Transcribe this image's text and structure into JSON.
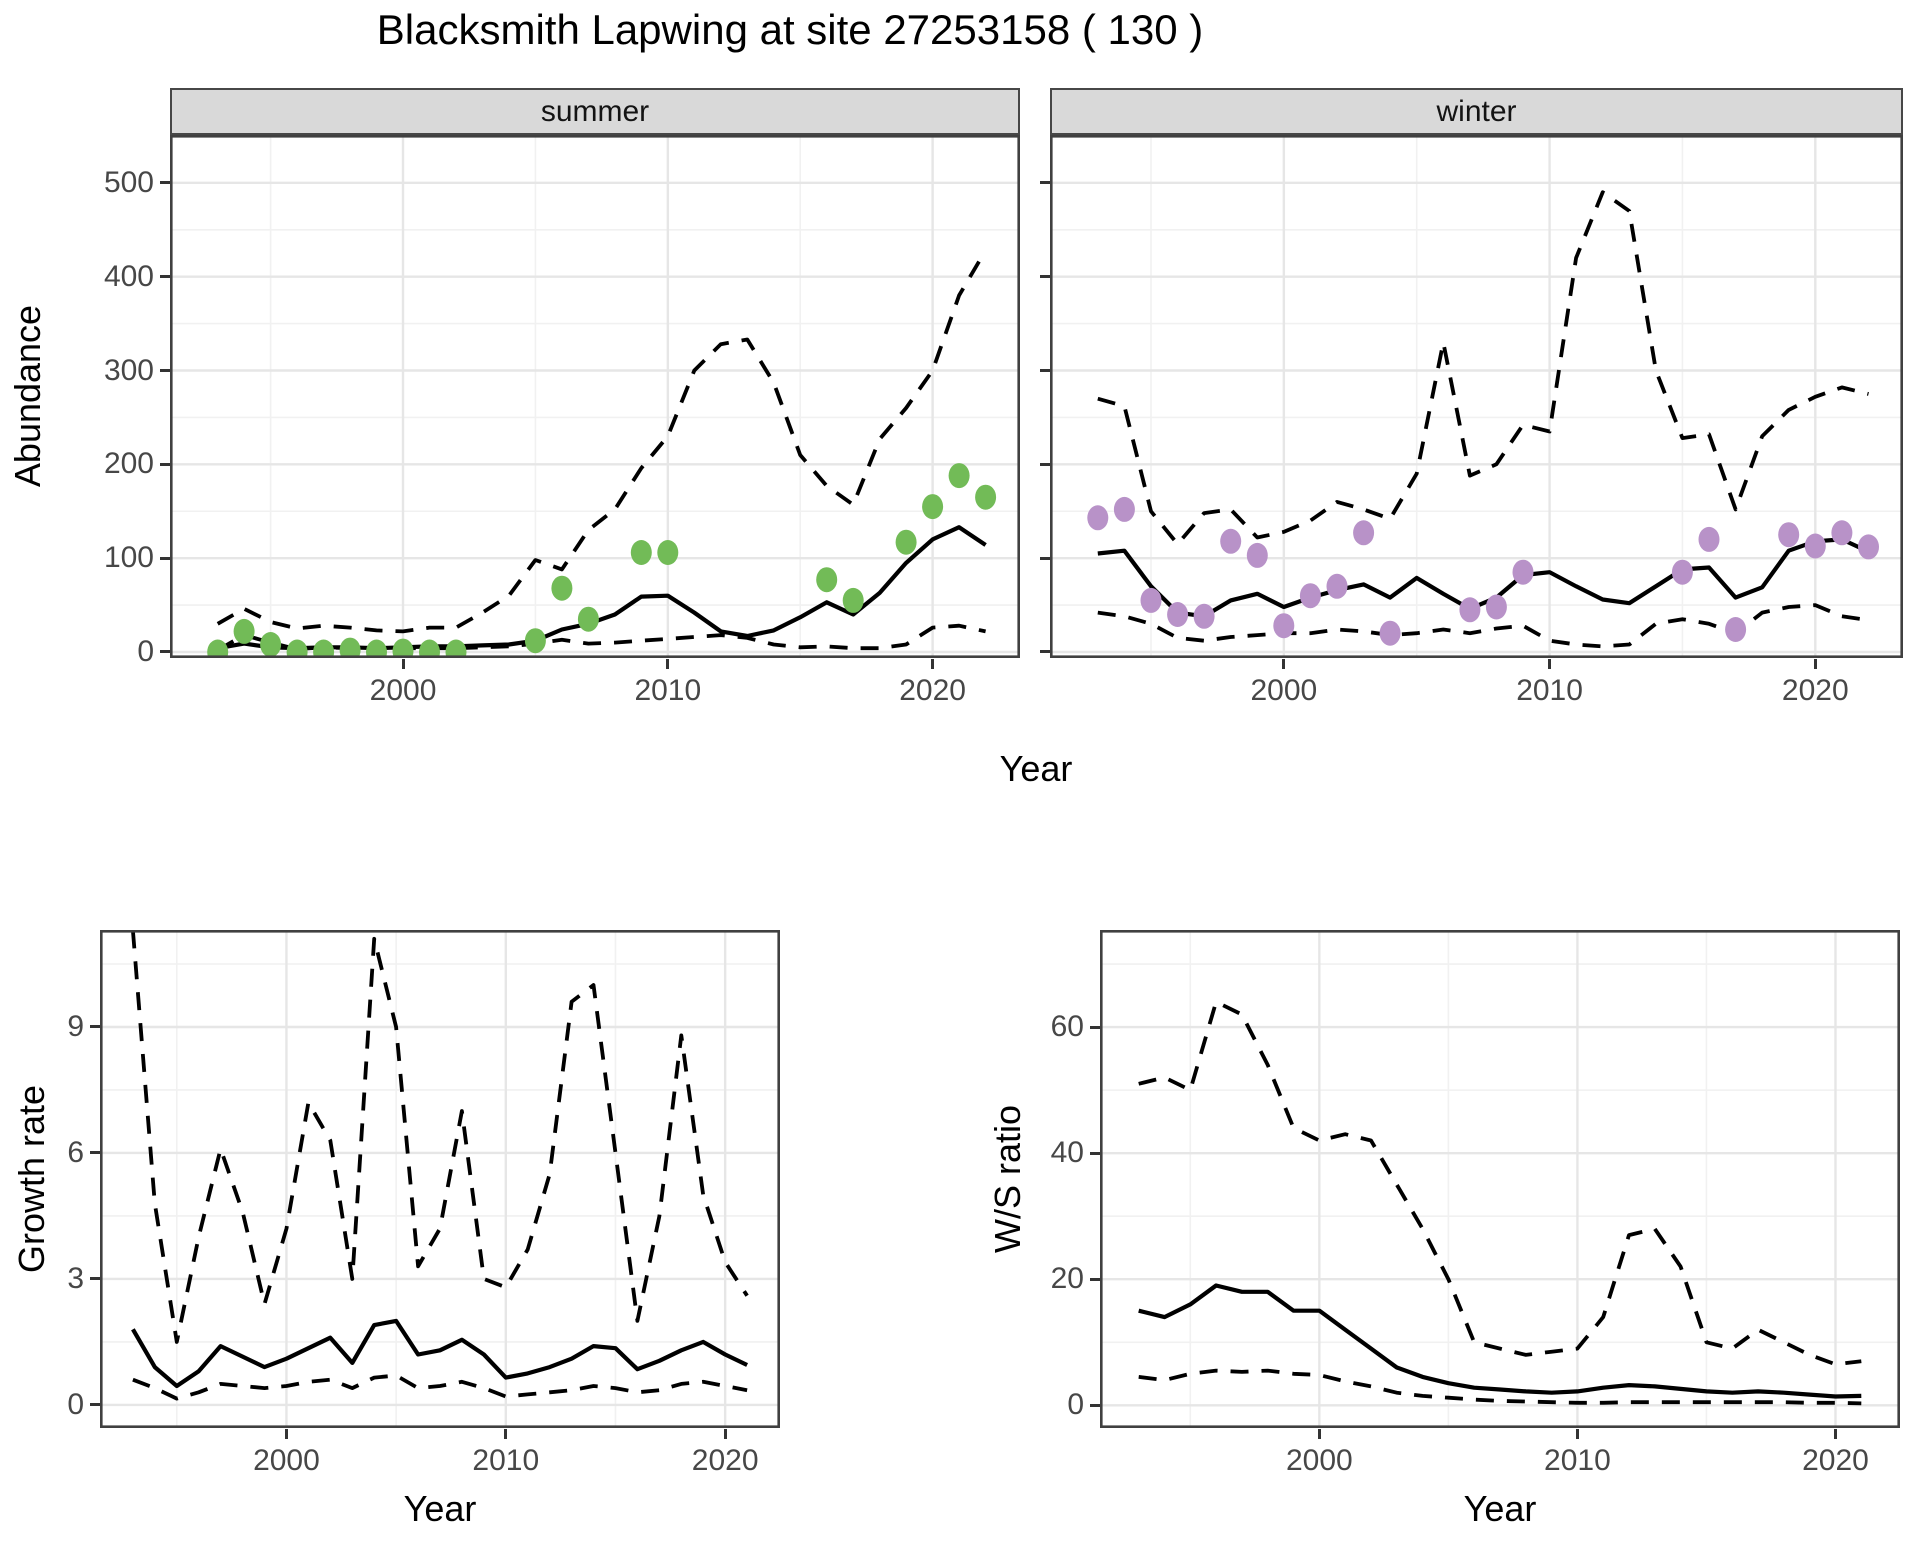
{
  "title": "Blacksmith Lapwing at site 27253158 ( 130 )",
  "axis_labels": {
    "abundance": "Abundance",
    "year_top": "Year",
    "growth_rate": "Growth rate",
    "ws_ratio": "W/S ratio",
    "year_bottom_left": "Year",
    "year_bottom_right": "Year"
  },
  "colors": {
    "summer_points": "#72BB57",
    "winter_points": "#B892C8",
    "line": "#000000",
    "panel_border": "#404040",
    "grid_major": "#E6E6E6",
    "grid_minor": "#F1F1F1",
    "strip_bg": "#D9D9D9",
    "tick_text": "#474747"
  },
  "chart_data": [
    {
      "id": "abundance-summer",
      "type": "line",
      "facet_label": "summer",
      "xlabel": "Year",
      "ylabel": "Abundance",
      "x_domain": [
        1991.2,
        2023.3
      ],
      "y_domain": [
        -6.4,
        551
      ],
      "x_ticks": [
        2000,
        2010,
        2020
      ],
      "x_minor": [
        1995,
        2005,
        2015
      ],
      "y_ticks": [
        0,
        100,
        200,
        300,
        400,
        500
      ],
      "y_minor": [
        50,
        150,
        250,
        350,
        450,
        550
      ],
      "show_y_tick_labels": true,
      "years": [
        1993,
        1994,
        1995,
        1996,
        1997,
        1998,
        1999,
        2000,
        2001,
        2002,
        2003,
        2004,
        2005,
        2006,
        2007,
        2008,
        2009,
        2010,
        2011,
        2012,
        2013,
        2014,
        2015,
        2016,
        2017,
        2018,
        2019,
        2020,
        2021,
        2022
      ],
      "series": [
        {
          "name": "median",
          "style": "solid",
          "values": [
            4,
            9,
            5,
            4,
            5,
            5,
            4,
            5,
            6,
            6,
            7,
            8,
            12,
            24,
            30,
            40,
            59,
            60,
            42,
            22,
            17,
            23,
            37,
            53,
            40,
            63,
            95,
            120,
            133,
            114
          ]
        },
        {
          "name": "upper_ci",
          "style": "dashed",
          "values": [
            30,
            46,
            32,
            25,
            28,
            26,
            23,
            22,
            26,
            26,
            42,
            60,
            98,
            88,
            130,
            152,
            196,
            230,
            300,
            328,
            333,
            287,
            210,
            177,
            157,
            227,
            260,
            300,
            380,
            428
          ]
        },
        {
          "name": "lower_ci",
          "style": "dashed",
          "values": [
            2,
            18,
            10,
            3,
            5,
            4,
            3,
            4,
            4,
            4,
            5,
            6,
            9,
            13,
            9,
            10,
            12,
            14,
            16,
            18,
            15,
            8,
            5,
            6,
            4,
            4,
            8,
            26,
            28,
            22
          ]
        }
      ],
      "points": {
        "color": "#72BB57",
        "years": [
          1993,
          1994,
          1995,
          1996,
          1997,
          1998,
          1999,
          2000,
          2001,
          2002,
          2005,
          2006,
          2007,
          2009,
          2010,
          2016,
          2017,
          2019,
          2020,
          2021,
          2022
        ],
        "values": [
          0,
          22,
          8,
          0,
          0,
          2,
          0,
          1,
          0,
          0,
          12,
          68,
          35,
          106,
          106,
          77,
          55,
          117,
          155,
          188,
          165
        ]
      }
    },
    {
      "id": "abundance-winter",
      "type": "line",
      "facet_label": "winter",
      "xlabel": "Year",
      "ylabel": "Abundance",
      "x_domain": [
        1991.2,
        2023.3
      ],
      "y_domain": [
        -6.4,
        551
      ],
      "x_ticks": [
        2000,
        2010,
        2020
      ],
      "x_minor": [
        1995,
        2005,
        2015
      ],
      "y_ticks": [
        0,
        100,
        200,
        300,
        400,
        500
      ],
      "y_minor": [
        50,
        150,
        250,
        350,
        450,
        550
      ],
      "show_y_tick_labels": false,
      "years": [
        1993,
        1994,
        1995,
        1996,
        1997,
        1998,
        1999,
        2000,
        2001,
        2002,
        2003,
        2004,
        2005,
        2006,
        2007,
        2008,
        2009,
        2010,
        2011,
        2012,
        2013,
        2014,
        2015,
        2016,
        2017,
        2018,
        2019,
        2020,
        2021,
        2022
      ],
      "series": [
        {
          "name": "median",
          "style": "solid",
          "values": [
            105,
            108,
            70,
            42,
            38,
            55,
            62,
            48,
            58,
            66,
            72,
            58,
            79,
            62,
            46,
            58,
            82,
            85,
            70,
            56,
            52,
            70,
            88,
            90,
            58,
            69,
            108,
            118,
            120,
            107
          ]
        },
        {
          "name": "upper_ci",
          "style": "dashed",
          "values": [
            270,
            262,
            150,
            115,
            148,
            152,
            122,
            128,
            140,
            160,
            152,
            142,
            190,
            330,
            188,
            200,
            242,
            235,
            420,
            490,
            470,
            300,
            228,
            232,
            152,
            230,
            258,
            272,
            282,
            275
          ]
        },
        {
          "name": "lower_ci",
          "style": "dashed",
          "values": [
            42,
            38,
            30,
            15,
            12,
            16,
            18,
            20,
            20,
            24,
            22,
            18,
            20,
            24,
            20,
            25,
            28,
            12,
            8,
            6,
            8,
            30,
            35,
            30,
            20,
            42,
            48,
            50,
            38,
            34
          ]
        }
      ],
      "points": {
        "color": "#B892C8",
        "years": [
          1993,
          1994,
          1995,
          1996,
          1997,
          1998,
          1999,
          2000,
          2001,
          2002,
          2003,
          2004,
          2007,
          2008,
          2009,
          2015,
          2016,
          2017,
          2019,
          2020,
          2021,
          2022
        ],
        "values": [
          143,
          152,
          55,
          40,
          38,
          118,
          103,
          28,
          60,
          70,
          127,
          20,
          45,
          48,
          85,
          85,
          120,
          24,
          125,
          113,
          127,
          112
        ]
      }
    },
    {
      "id": "growth-rate",
      "type": "line",
      "facet_label": "",
      "xlabel": "Year",
      "ylabel": "Growth rate",
      "x_domain": [
        1991.5,
        2022.5
      ],
      "y_domain": [
        -0.55,
        11.31
      ],
      "x_ticks": [
        2000,
        2010,
        2020
      ],
      "x_minor": [
        1995,
        2005,
        2015
      ],
      "y_ticks": [
        0,
        3,
        6,
        9
      ],
      "y_minor": [
        1.5,
        4.5,
        7.5,
        10.5
      ],
      "show_y_tick_labels": true,
      "years": [
        1993,
        1994,
        1995,
        1996,
        1997,
        1998,
        1999,
        2000,
        2001,
        2002,
        2003,
        2004,
        2005,
        2006,
        2007,
        2008,
        2009,
        2010,
        2011,
        2012,
        2013,
        2014,
        2015,
        2016,
        2017,
        2018,
        2019,
        2020,
        2021
      ],
      "series": [
        {
          "name": "median",
          "style": "solid",
          "values": [
            1.8,
            0.9,
            0.45,
            0.8,
            1.4,
            1.15,
            0.9,
            1.1,
            1.35,
            1.6,
            1.0,
            1.9,
            2.0,
            1.2,
            1.3,
            1.55,
            1.2,
            0.65,
            0.75,
            0.9,
            1.1,
            1.4,
            1.35,
            0.85,
            1.05,
            1.3,
            1.5,
            1.2,
            0.95
          ]
        },
        {
          "name": "upper_ci",
          "style": "dashed",
          "values": [
            11.3,
            4.8,
            1.5,
            4.0,
            6.1,
            4.6,
            2.4,
            4.2,
            7.2,
            6.3,
            3.0,
            11.1,
            9.0,
            3.3,
            4.2,
            7.0,
            3.0,
            2.8,
            3.7,
            5.5,
            9.6,
            10.0,
            6.0,
            2.0,
            4.5,
            8.8,
            5.0,
            3.4,
            2.6
          ]
        },
        {
          "name": "lower_ci",
          "style": "dashed",
          "values": [
            0.6,
            0.4,
            0.15,
            0.3,
            0.5,
            0.45,
            0.4,
            0.45,
            0.55,
            0.6,
            0.4,
            0.65,
            0.7,
            0.4,
            0.45,
            0.55,
            0.4,
            0.2,
            0.25,
            0.3,
            0.35,
            0.45,
            0.4,
            0.3,
            0.35,
            0.5,
            0.55,
            0.45,
            0.35
          ]
        }
      ],
      "points": null
    },
    {
      "id": "ws-ratio",
      "type": "line",
      "facet_label": "",
      "xlabel": "Year",
      "ylabel": "W/S ratio",
      "x_domain": [
        1991.5,
        2022.5
      ],
      "y_domain": [
        -3.6,
        75.4
      ],
      "x_ticks": [
        2000,
        2010,
        2020
      ],
      "x_minor": [
        1995,
        2005,
        2015
      ],
      "y_ticks": [
        0,
        20,
        40,
        60
      ],
      "y_minor": [
        10,
        30,
        50,
        70
      ],
      "show_y_tick_labels": true,
      "years": [
        1993,
        1994,
        1995,
        1996,
        1997,
        1998,
        1999,
        2000,
        2001,
        2002,
        2003,
        2004,
        2005,
        2006,
        2007,
        2008,
        2009,
        2010,
        2011,
        2012,
        2013,
        2014,
        2015,
        2016,
        2017,
        2018,
        2019,
        2020,
        2021
      ],
      "series": [
        {
          "name": "median",
          "style": "solid",
          "values": [
            15,
            14,
            16,
            19,
            18,
            18,
            15,
            15,
            12,
            9,
            6,
            4.5,
            3.5,
            2.8,
            2.5,
            2.2,
            2.0,
            2.2,
            2.8,
            3.2,
            3.0,
            2.6,
            2.2,
            2.0,
            2.2,
            2.0,
            1.7,
            1.4,
            1.5
          ]
        },
        {
          "name": "upper_ci",
          "style": "dashed",
          "values": [
            51,
            52,
            50,
            64,
            62,
            54,
            44,
            42,
            43,
            42,
            35,
            28,
            20,
            10,
            9,
            8,
            8.5,
            9,
            14,
            27,
            28,
            22,
            10,
            9,
            12,
            10,
            8,
            6.5,
            7
          ]
        },
        {
          "name": "lower_ci",
          "style": "dashed",
          "values": [
            4.5,
            4,
            5,
            5.5,
            5.3,
            5.5,
            5,
            4.8,
            3.8,
            3,
            2,
            1.5,
            1.2,
            0.9,
            0.7,
            0.6,
            0.5,
            0.4,
            0.4,
            0.5,
            0.5,
            0.5,
            0.5,
            0.5,
            0.5,
            0.5,
            0.4,
            0.4,
            0.3
          ]
        }
      ],
      "points": null
    }
  ]
}
